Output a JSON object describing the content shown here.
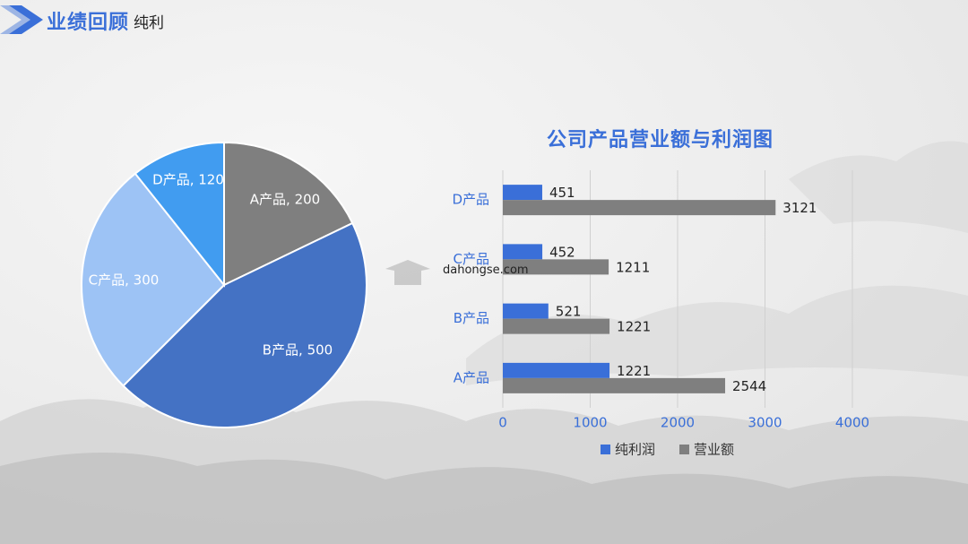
{
  "header": {
    "title": "业绩回顾",
    "subtitle": "纯利"
  },
  "watermark": "dahongse.com",
  "colors": {
    "accent": "#3a6fd8",
    "gray": "#7f7f7f",
    "pie_A": "#7f7f7f",
    "pie_B": "#4472c4",
    "pie_C": "#9dc3f5",
    "pie_D": "#419cf0"
  },
  "chart_data": [
    {
      "type": "pie",
      "categories": [
        "A产品",
        "B产品",
        "C产品",
        "D产品"
      ],
      "values": [
        200,
        500,
        300,
        120
      ],
      "labels": [
        "A产品, 200",
        "B产品, 500",
        "C产品, 300",
        "D产品, 120"
      ]
    },
    {
      "type": "bar",
      "orientation": "horizontal",
      "title": "公司产品营业额与利润图",
      "categories": [
        "A产品",
        "B产品",
        "C产品",
        "D产品"
      ],
      "series": [
        {
          "name": "纯利润",
          "values": [
            1221,
            521,
            452,
            451
          ]
        },
        {
          "name": "营业额",
          "values": [
            2544,
            1221,
            1211,
            3121
          ]
        }
      ],
      "xlim": [
        0,
        4000
      ],
      "xticks": [
        0,
        1000,
        2000,
        3000,
        4000
      ],
      "legend": "bottom",
      "grid": true
    }
  ]
}
